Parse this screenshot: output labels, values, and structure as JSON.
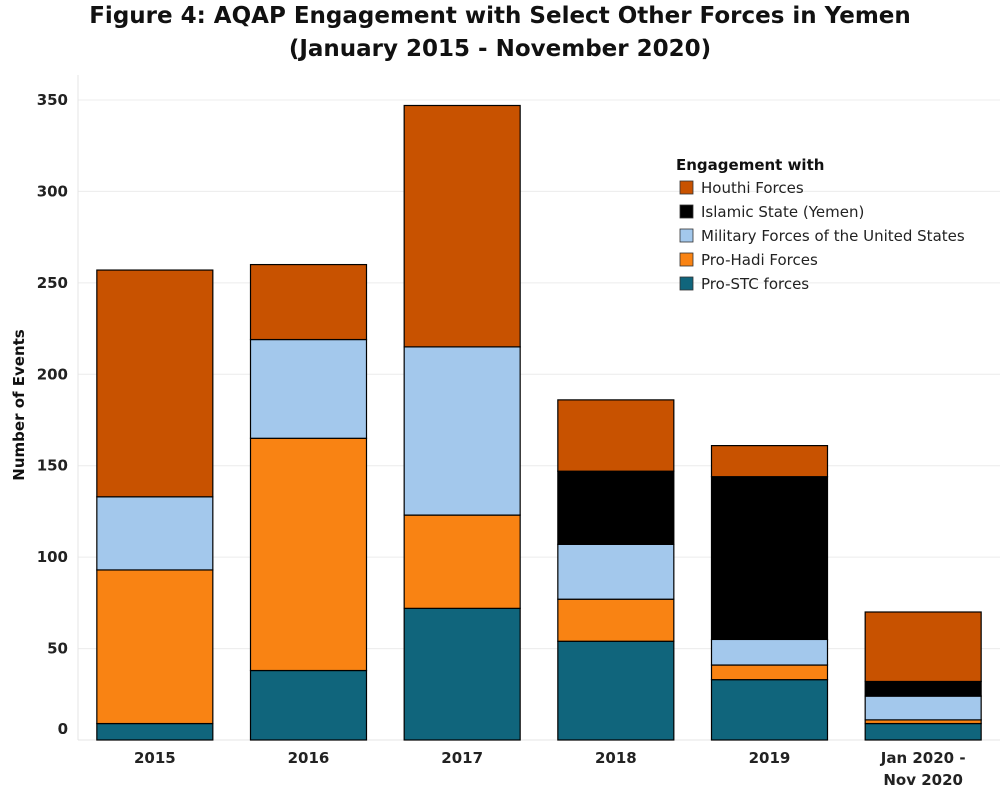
{
  "chart_data": {
    "type": "bar",
    "stacked": true,
    "title": "Figure 4: AQAP Engagement with Select Other Forces in Yemen",
    "subtitle": "(January 2015 - November 2020)",
    "xlabel": "",
    "ylabel": "Number of Events",
    "ylim": [
      0,
      350
    ],
    "yticks": [
      0,
      50,
      100,
      150,
      200,
      250,
      300,
      350
    ],
    "grid": true,
    "legend_title": "Engagement with",
    "legend_position": "top-right",
    "categories": [
      "2015",
      "2016",
      "2017",
      "2018",
      "2019",
      "Jan 2020 - Nov 2020"
    ],
    "series": [
      {
        "name": "Pro-STC forces",
        "color": "#10657c",
        "values": [
          9,
          38,
          72,
          54,
          33,
          9
        ]
      },
      {
        "name": "Pro-Hadi Forces",
        "color": "#f98313",
        "values": [
          84,
          127,
          51,
          23,
          8,
          2
        ]
      },
      {
        "name": "Military Forces of the United States",
        "color": "#a3c8ec",
        "values": [
          40,
          54,
          92,
          30,
          14,
          13
        ]
      },
      {
        "name": "Islamic State (Yemen)",
        "color": "#000000",
        "values": [
          0,
          0,
          0,
          40,
          89,
          8
        ]
      },
      {
        "name": "Houthi Forces",
        "color": "#c85200",
        "values": [
          124,
          41,
          132,
          39,
          17,
          38
        ]
      }
    ],
    "legend_order": [
      "Houthi Forces",
      "Islamic State (Yemen)",
      "Military Forces of the United States",
      "Pro-Hadi Forces",
      "Pro-STC forces"
    ]
  }
}
